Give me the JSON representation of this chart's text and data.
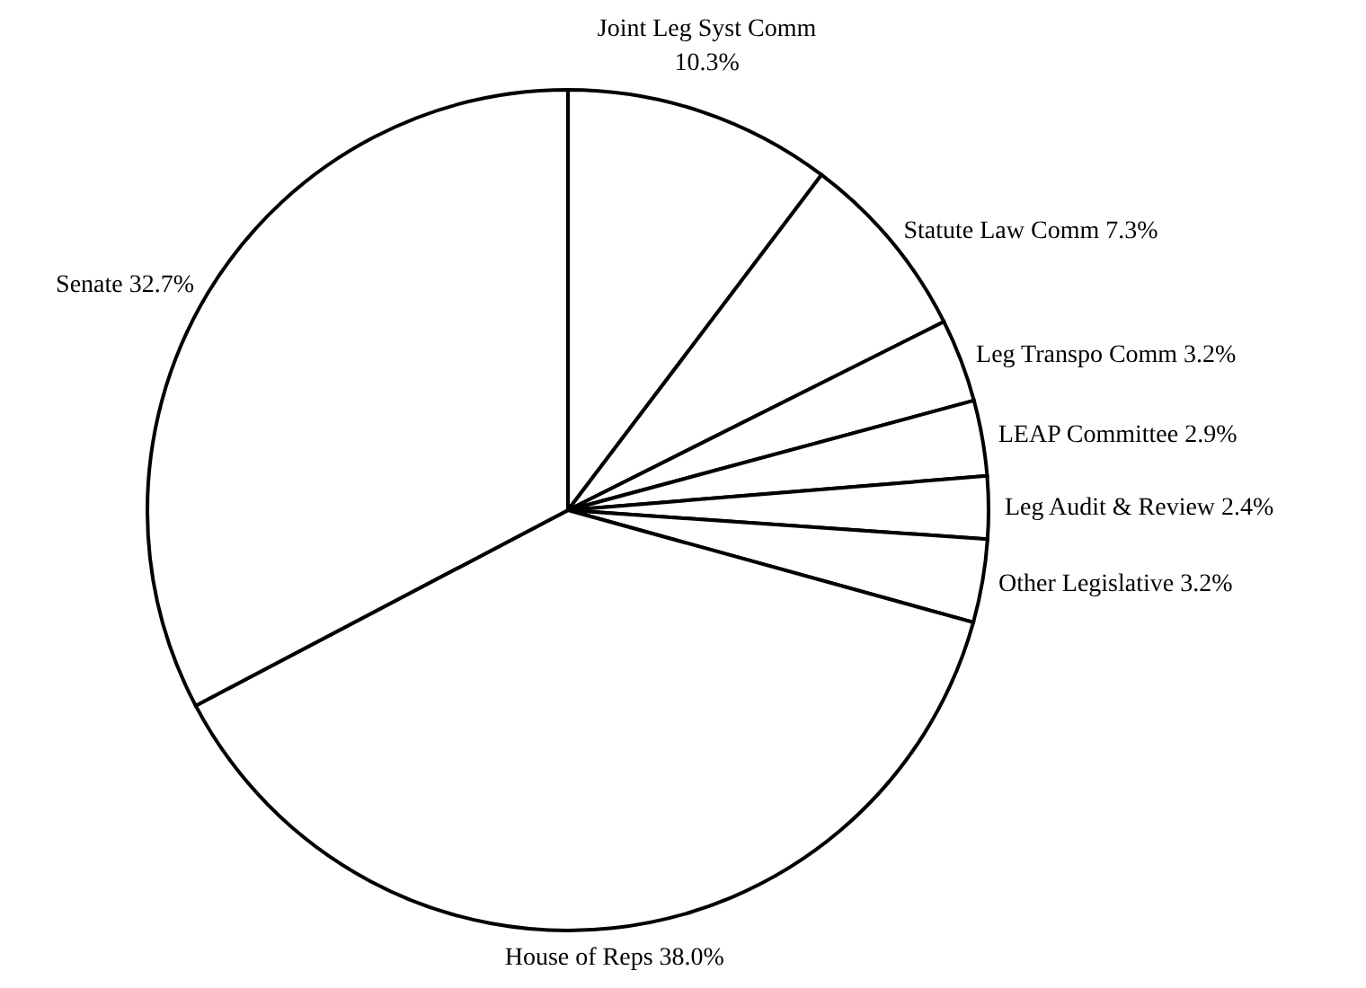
{
  "chart_data": {
    "type": "pie",
    "categories": [
      "Joint Leg Syst Comm",
      "Statute Law Comm",
      "Leg Transpo Comm",
      "LEAP Committee",
      "Leg Audit & Review",
      "Other Legislative",
      "House of Reps",
      "Senate"
    ],
    "values": [
      10.3,
      7.3,
      3.2,
      2.9,
      2.4,
      3.2,
      38.0,
      32.7
    ],
    "value_labels": [
      "10.3%",
      "7.3%",
      "3.2%",
      "2.9%",
      "2.4%",
      "3.2%",
      "38.0%",
      "32.7%"
    ],
    "colors": [
      "#ffffff",
      "#ffffff",
      "#ffffff",
      "#ffffff",
      "#ffffff",
      "#ffffff",
      "#ffffff",
      "#ffffff"
    ]
  }
}
